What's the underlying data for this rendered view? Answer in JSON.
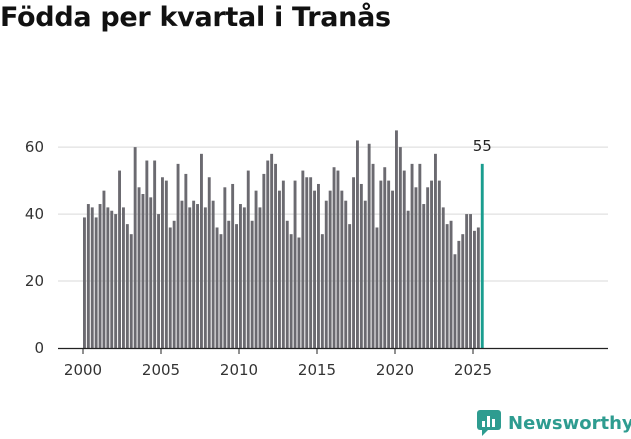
{
  "title": "Födda per kvartal i Tranås",
  "brand": {
    "name": "Newsworthy",
    "color": "#2e9c90",
    "icon": "bar-chart-icon"
  },
  "colors": {
    "bar": "#6b6a70",
    "highlight": "#1a9d8f",
    "axis": "#222222"
  },
  "chart_data": {
    "type": "bar",
    "title": "Födda per kvartal i Tranås",
    "xlabel": "",
    "ylabel": "",
    "ylim": [
      0,
      69
    ],
    "yticks": [
      0,
      20,
      40,
      60
    ],
    "xticks": [
      "2000",
      "2005",
      "2010",
      "2015",
      "2020",
      "2025"
    ],
    "start_year": 2000,
    "last_label": "55",
    "values": [
      39,
      43,
      42,
      39,
      43,
      47,
      42,
      41,
      40,
      53,
      42,
      37,
      34,
      60,
      48,
      46,
      56,
      45,
      56,
      40,
      51,
      50,
      36,
      38,
      55,
      44,
      52,
      42,
      44,
      43,
      58,
      42,
      51,
      44,
      36,
      34,
      48,
      38,
      49,
      37,
      43,
      42,
      53,
      38,
      47,
      42,
      52,
      56,
      58,
      55,
      47,
      50,
      38,
      34,
      50,
      33,
      53,
      51,
      51,
      47,
      49,
      34,
      44,
      47,
      54,
      53,
      47,
      44,
      37,
      51,
      62,
      49,
      44,
      61,
      55,
      36,
      50,
      54,
      50,
      47,
      65,
      60,
      53,
      41,
      55,
      48,
      55,
      43,
      48,
      50,
      58,
      50,
      42,
      37,
      38,
      28,
      32,
      34,
      40,
      40,
      35,
      36,
      55
    ]
  }
}
